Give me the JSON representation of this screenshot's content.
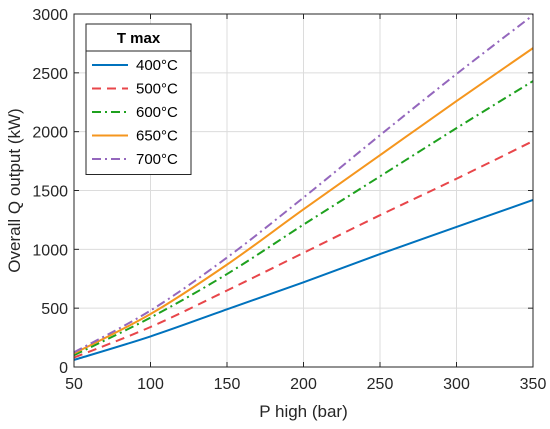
{
  "chart_data": {
    "type": "line",
    "xlabel": "P high (bar)",
    "ylabel": "Overall Q output (kW)",
    "xlim": [
      50,
      350
    ],
    "ylim": [
      0,
      3000
    ],
    "xticks": [
      50,
      100,
      150,
      200,
      250,
      300,
      350
    ],
    "yticks": [
      0,
      500,
      1000,
      1500,
      2000,
      2500,
      3000
    ],
    "xtick_labels": [
      "50",
      "100",
      "150",
      "200",
      "250",
      "300",
      "350"
    ],
    "ytick_labels": [
      "0",
      "500",
      "1000",
      "1500",
      "2000",
      "2500",
      "3000"
    ],
    "grid": true,
    "legend_title": "T max",
    "legend_position": "top-left",
    "x": [
      50,
      100,
      150,
      200,
      250,
      300,
      350
    ],
    "series": [
      {
        "name": "400°C",
        "color": "#0072BD",
        "dash": "solid",
        "values": [
          60,
          260,
          490,
          720,
          960,
          1190,
          1420
        ]
      },
      {
        "name": "500°C",
        "color": "#E8464A",
        "dash": "dashed",
        "values": [
          80,
          340,
          650,
          970,
          1290,
          1600,
          1920
        ]
      },
      {
        "name": "600°C",
        "color": "#1EA11E",
        "dash": "dashdot",
        "values": [
          100,
          420,
          790,
          1210,
          1620,
          2030,
          2430
        ]
      },
      {
        "name": "650°C",
        "color": "#F5961E",
        "dash": "solid",
        "values": [
          115,
          450,
          870,
          1340,
          1800,
          2260,
          2710
        ]
      },
      {
        "name": "700°C",
        "color": "#9467BD",
        "dash": "dashdot",
        "values": [
          125,
          480,
          930,
          1440,
          1970,
          2490,
          2990
        ]
      }
    ]
  }
}
